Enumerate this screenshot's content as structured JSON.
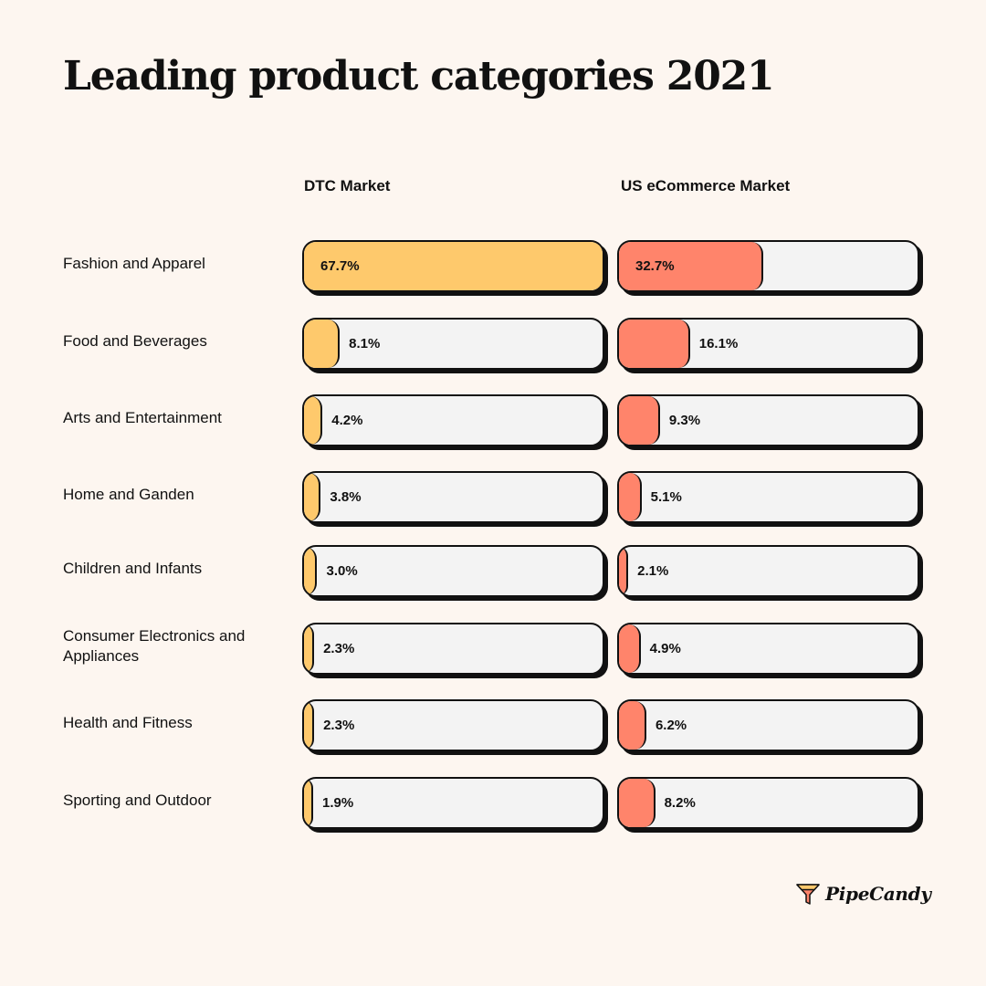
{
  "title": "Leading product categories 2021",
  "columns": [
    "DTC Market",
    "US eCommerce Market"
  ],
  "colors": {
    "dtc": "#fec96c",
    "us": "#ff846b",
    "track": "#f3f3f3",
    "background": "#fdf6f0"
  },
  "brand": {
    "name": "PipeCandy",
    "icon": "candy-funnel-icon"
  },
  "rows": [
    {
      "label": "Fashion and Apparel",
      "dtc": "67.7%",
      "us": "32.7%"
    },
    {
      "label": "Food and Beverages",
      "dtc": "8.1%",
      "us": "16.1%"
    },
    {
      "label": "Arts and Entertainment",
      "dtc": "4.2%",
      "us": "9.3%"
    },
    {
      "label": "Home and Ganden",
      "dtc": "3.8%",
      "us": "5.1%"
    },
    {
      "label": "Children and Infants",
      "dtc": "3.0%",
      "us": "2.1%"
    },
    {
      "label": "Consumer Electronics and Appliances",
      "dtc": "2.3%",
      "us": "4.9%"
    },
    {
      "label": "Health and Fitness",
      "dtc": "2.3%",
      "us": "6.2%"
    },
    {
      "label": "Sporting and Outdoor",
      "dtc": "1.9%",
      "us": "8.2%"
    }
  ],
  "chart_data": {
    "type": "bar",
    "title": "Leading product categories 2021",
    "categories": [
      "Fashion and Apparel",
      "Food and Beverages",
      "Arts and Entertainment",
      "Home and Ganden",
      "Children and Infants",
      "Consumer Electronics and Appliances",
      "Health and Fitness",
      "Sporting and Outdoor"
    ],
    "series": [
      {
        "name": "DTC Market",
        "values": [
          67.7,
          8.1,
          4.2,
          3.8,
          3.0,
          2.3,
          2.3,
          1.9
        ]
      },
      {
        "name": "US eCommerce Market",
        "values": [
          32.7,
          16.1,
          9.3,
          5.1,
          2.1,
          4.9,
          6.2,
          8.2
        ]
      }
    ],
    "xlim": [
      0,
      67.7
    ],
    "orientation": "horizontal",
    "grid": false
  }
}
